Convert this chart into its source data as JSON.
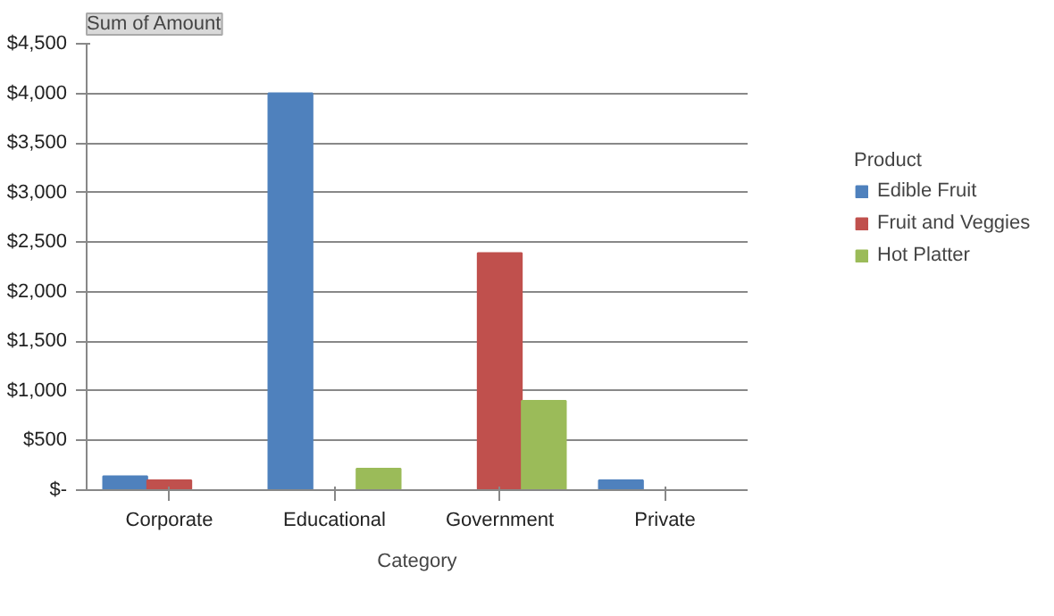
{
  "chart_data": {
    "type": "bar",
    "title": "Sum of Amount",
    "xlabel": "Category",
    "legend_title": "Product",
    "categories": [
      "Corporate",
      "Educational",
      "Government",
      "Private"
    ],
    "series": [
      {
        "name": "Edible Fruit",
        "color": "#4f81bd",
        "values": [
          140,
          4000,
          null,
          100
        ]
      },
      {
        "name": "Fruit and Veggies",
        "color": "#c0504d",
        "values": [
          100,
          null,
          2390,
          null
        ]
      },
      {
        "name": "Hot Platter",
        "color": "#9bbb59",
        "values": [
          null,
          215,
          900,
          null
        ]
      }
    ],
    "ylim": [
      0,
      4500
    ],
    "yticks": [
      {
        "value": 0,
        "label": "$-"
      },
      {
        "value": 500,
        "label": "$500"
      },
      {
        "value": 1000,
        "label": "$1,000"
      },
      {
        "value": 1500,
        "label": "$1,500"
      },
      {
        "value": 2000,
        "label": "$2,000"
      },
      {
        "value": 2500,
        "label": "$2,500"
      },
      {
        "value": 3000,
        "label": "$3,000"
      },
      {
        "value": 3500,
        "label": "$3,500"
      },
      {
        "value": 4000,
        "label": "$4,000"
      },
      {
        "value": 4500,
        "label": "$4,500"
      }
    ],
    "grid": "y",
    "legend": "right"
  }
}
